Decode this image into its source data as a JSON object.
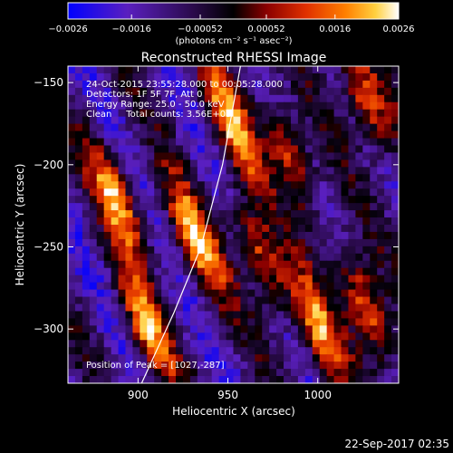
{
  "chart_data": {
    "type": "heatmap",
    "title": "Reconstructed RHESSI Image",
    "xlabel": "Heliocentric X (arcsec)",
    "ylabel": "Heliocentric Y (arcsec)",
    "xlim": [
      861,
      1045
    ],
    "ylim": [
      -333,
      -140
    ],
    "xticks": [
      900,
      950,
      1000
    ],
    "yticks": [
      -150,
      -200,
      -250,
      -300
    ],
    "xtick_labels": [
      "900",
      "950",
      "1000"
    ],
    "ytick_labels": [
      "−150",
      "−200",
      "−250",
      "−300"
    ],
    "colorbar": {
      "range": [
        -0.0026,
        0.0026
      ],
      "ticks": [
        -0.0026,
        -0.0016,
        -0.00052,
        0.00052,
        0.0016,
        0.0026
      ],
      "tick_labels": [
        "−0.0026",
        "−0.0016",
        "−0.00052",
        "0.00052",
        "0.0016",
        "0.0026"
      ],
      "unit_label": "(photons cm⁻² s⁻¹ asec⁻²)",
      "colors": [
        "#0000ff",
        "#5a1fbf",
        "#2a0a4a",
        "#000000",
        "#8a0000",
        "#e03000",
        "#ff8000",
        "#ffd040",
        "#ffffff"
      ]
    },
    "annotations": [
      "24-Oct-2015 23:55:28.000 to 00:05:28.000",
      "Detectors: 1F 5F 7F, Att 0",
      "Energy Range: 25.0 - 50.0 keV",
      "Clean     Total counts: 3.56E+03"
    ],
    "peak_label": "Position of Peak = [1027,-287]",
    "peak": [
      1027,
      -287
    ],
    "limb_curve": [
      [
        902,
        -333
      ],
      [
        920,
        -290
      ],
      [
        935,
        -250
      ],
      [
        947,
        -200
      ],
      [
        957,
        -140
      ]
    ],
    "bright_ridges": [
      {
        "center": [
          888,
          -220
        ],
        "value": 0.0024
      },
      {
        "center": [
          905,
          -300
        ],
        "value": 0.0022
      },
      {
        "center": [
          932,
          -245
        ],
        "value": 0.0024
      },
      {
        "center": [
          952,
          -175
        ],
        "value": 0.0023
      },
      {
        "center": [
          968,
          -255
        ],
        "value": 0.0022
      },
      {
        "center": [
          985,
          -195
        ],
        "value": 0.0021
      },
      {
        "center": [
          1000,
          -300
        ],
        "value": 0.0022
      },
      {
        "center": [
          1027,
          -160
        ],
        "value": 0.0024
      },
      {
        "center": [
          1027,
          -287
        ],
        "value": 0.0026
      }
    ]
  },
  "footer_timestamp": "22-Sep-2017 02:35"
}
